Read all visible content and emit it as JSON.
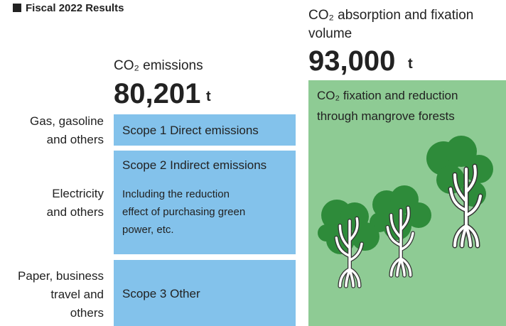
{
  "header": {
    "title": "Fiscal 2022 Results"
  },
  "emissions": {
    "label": "CO₂ emissions",
    "amount": "80,201",
    "unit": "t"
  },
  "scopes": [
    {
      "source": [
        "Gas, gasoline",
        "and others"
      ],
      "title": "Scope 1 Direct emissions"
    },
    {
      "source": [
        "Electricity",
        "and others"
      ],
      "title": "Scope 2 Indirect emissions",
      "note": [
        "Including the reduction",
        "effect of purchasing green",
        "power, etc."
      ]
    },
    {
      "source": [
        "Paper, business",
        "travel and",
        "others"
      ],
      "title": "Scope 3 Other"
    }
  ],
  "absorption": {
    "label": [
      "CO₂ absorption and fixation",
      "volume"
    ],
    "amount": "93,000",
    "unit": "t",
    "panel": [
      "CO₂ fixation and reduction",
      "through mangrove forests"
    ]
  }
}
